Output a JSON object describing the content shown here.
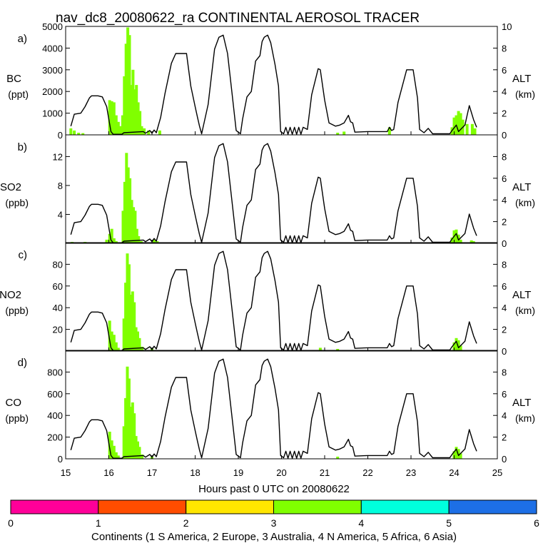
{
  "chart_data": {
    "type": "bar",
    "title": "nav_dc8_20080622_ra CONTINENTAL AEROSOL TRACER",
    "xlabel": "Hours past 0 UTC on 20080622",
    "xlim": [
      15,
      25
    ],
    "x_ticks": [
      "15",
      "16",
      "17",
      "18",
      "19",
      "20",
      "21",
      "22",
      "23",
      "24",
      "25"
    ],
    "right_axis": {
      "label": "ALT",
      "units": "(km)",
      "ylim": [
        0,
        10
      ],
      "line_color": "#000000",
      "altitude_km": [
        [
          15.12,
          0.8
        ],
        [
          15.2,
          1.9
        ],
        [
          15.35,
          2
        ],
        [
          15.45,
          2.6
        ],
        [
          15.55,
          3.4
        ],
        [
          15.6,
          3.6
        ],
        [
          15.75,
          3.6
        ],
        [
          15.85,
          3.5
        ],
        [
          15.95,
          2.6
        ],
        [
          16.05,
          0.3
        ],
        [
          16.1,
          0.05
        ],
        [
          16.3,
          0.05
        ],
        [
          16.35,
          0.2
        ],
        [
          16.8,
          0.3
        ],
        [
          16.85,
          0.15
        ],
        [
          16.95,
          0.4
        ],
        [
          17.0,
          0.15
        ],
        [
          17.05,
          0.45
        ],
        [
          17.1,
          0.2
        ],
        [
          17.2,
          1.6
        ],
        [
          17.3,
          3.8
        ],
        [
          17.45,
          6.6
        ],
        [
          17.55,
          7.5
        ],
        [
          17.8,
          7.5
        ],
        [
          17.9,
          4.5
        ],
        [
          18.0,
          2.6
        ],
        [
          18.05,
          1.7
        ],
        [
          18.1,
          0.8
        ],
        [
          18.15,
          0.1
        ],
        [
          18.3,
          2.8
        ],
        [
          18.45,
          7.9
        ],
        [
          18.55,
          9.0
        ],
        [
          18.65,
          9.2
        ],
        [
          18.75,
          7.5
        ],
        [
          18.85,
          4.0
        ],
        [
          18.95,
          0.4
        ],
        [
          19.05,
          0.1
        ],
        [
          19.1,
          1.5
        ],
        [
          19.2,
          3.5
        ],
        [
          19.3,
          4.0
        ],
        [
          19.4,
          6.8
        ],
        [
          19.5,
          7.3
        ],
        [
          19.55,
          8.6
        ],
        [
          19.6,
          9.0
        ],
        [
          19.68,
          9.2
        ],
        [
          19.75,
          8.5
        ],
        [
          19.85,
          6.5
        ],
        [
          19.93,
          4.5
        ],
        [
          19.98,
          0.3
        ],
        [
          20.05,
          0.1
        ],
        [
          20.1,
          0.7
        ],
        [
          20.15,
          0.05
        ],
        [
          20.2,
          0.7
        ],
        [
          20.25,
          0.05
        ],
        [
          20.3,
          0.7
        ],
        [
          20.35,
          0.05
        ],
        [
          20.4,
          0.7
        ],
        [
          20.45,
          0.05
        ],
        [
          20.5,
          0.7
        ],
        [
          20.6,
          0.5
        ],
        [
          20.7,
          3.7
        ],
        [
          20.85,
          6.1
        ],
        [
          20.9,
          6.0
        ],
        [
          21.0,
          3.2
        ],
        [
          21.1,
          1.1
        ],
        [
          21.25,
          0.8
        ],
        [
          21.35,
          0.9
        ],
        [
          21.45,
          1.1
        ],
        [
          21.55,
          1.8
        ],
        [
          21.6,
          1.2
        ],
        [
          21.65,
          1.1
        ],
        [
          21.7,
          0.25
        ],
        [
          22.0,
          0.3
        ],
        [
          22.3,
          0.3
        ],
        [
          22.45,
          0.3
        ],
        [
          22.5,
          0.7
        ],
        [
          22.55,
          0.4
        ],
        [
          22.6,
          0.5
        ],
        [
          22.7,
          3.0
        ],
        [
          22.9,
          6.0
        ],
        [
          23.05,
          6.0
        ],
        [
          23.15,
          3.4
        ],
        [
          23.2,
          0.5
        ],
        [
          23.3,
          0.2
        ],
        [
          23.4,
          0.6
        ],
        [
          23.5,
          0.1
        ],
        [
          23.9,
          0.1
        ],
        [
          23.95,
          0.4
        ],
        [
          24.05,
          0.9
        ],
        [
          24.1,
          0.3
        ],
        [
          24.25,
          0.9
        ],
        [
          24.35,
          2.7
        ],
        [
          24.45,
          1.4
        ],
        [
          24.52,
          0.7
        ]
      ]
    },
    "panels": [
      {
        "letter": "a)",
        "species": "BC",
        "units": "(ppt)",
        "ylim": [
          0,
          5000
        ],
        "y_ticks": [
          "0",
          "1000",
          "2000",
          "3000",
          "4000",
          "5000"
        ],
        "alt_ticks": [
          "0",
          "2",
          "4",
          "6",
          "8",
          "10"
        ],
        "series": [
          {
            "name": "N America",
            "color": "#80ff00",
            "bars": [
              [
                15.12,
                300
              ],
              [
                15.2,
                200
              ],
              [
                15.3,
                100
              ],
              [
                15.4,
                80
              ],
              [
                16.02,
                1600
              ],
              [
                16.07,
                1550
              ],
              [
                16.12,
                1500
              ],
              [
                16.17,
                900
              ],
              [
                16.22,
                600
              ],
              [
                16.27,
                400
              ],
              [
                16.32,
                900
              ],
              [
                16.36,
                2700
              ],
              [
                16.4,
                4200
              ],
              [
                16.44,
                4950
              ],
              [
                16.48,
                4600
              ],
              [
                16.52,
                2300
              ],
              [
                16.56,
                3000
              ],
              [
                16.6,
                2100
              ],
              [
                16.64,
                2300
              ],
              [
                16.68,
                1500
              ],
              [
                16.72,
                1100
              ],
              [
                16.76,
                400
              ],
              [
                16.82,
                300
              ],
              [
                16.92,
                200
              ],
              [
                17.18,
                200
              ],
              [
                21.3,
                100
              ],
              [
                21.45,
                150
              ],
              [
                22.5,
                350
              ],
              [
                23.95,
                350
              ],
              [
                24.0,
                800
              ],
              [
                24.05,
                900
              ],
              [
                24.1,
                1100
              ],
              [
                24.15,
                1000
              ],
              [
                24.2,
                700
              ],
              [
                24.3,
                500
              ],
              [
                24.42,
                500
              ],
              [
                24.48,
                300
              ]
            ]
          }
        ]
      },
      {
        "letter": "b)",
        "species": "SO2",
        "units": "(ppb)",
        "ylim": [
          0,
          15
        ],
        "y_ticks": [
          "",
          "4",
          "8",
          "12"
        ],
        "alt_ticks": [
          "0",
          "2",
          "4",
          "6",
          "8"
        ],
        "series": [
          {
            "name": "N America",
            "color": "#80ff00",
            "bars": [
              [
                15.15,
                0.2
              ],
              [
                15.3,
                0.15
              ],
              [
                15.45,
                0.2
              ],
              [
                15.6,
                0.15
              ],
              [
                15.75,
                0.15
              ],
              [
                15.95,
                0.5
              ],
              [
                16.02,
                1.3
              ],
              [
                16.07,
                2.0
              ],
              [
                16.12,
                0.7
              ],
              [
                16.17,
                0.3
              ],
              [
                16.33,
                4.5
              ],
              [
                16.37,
                8.5
              ],
              [
                16.41,
                12.5
              ],
              [
                16.45,
                10.5
              ],
              [
                16.49,
                9.0
              ],
              [
                16.53,
                6.0
              ],
              [
                16.57,
                5.0
              ],
              [
                16.61,
                4.5
              ],
              [
                16.65,
                2.0
              ],
              [
                16.69,
                1.0
              ],
              [
                16.75,
                0.3
              ],
              [
                17.05,
                0.5
              ],
              [
                17.12,
                0.3
              ],
              [
                20.75,
                0.15
              ],
              [
                21.35,
                0.15
              ],
              [
                23.95,
                0.8
              ],
              [
                24.0,
                1.8
              ],
              [
                24.05,
                1.9
              ],
              [
                24.1,
                1.2
              ],
              [
                24.15,
                0.5
              ],
              [
                24.4,
                0.4
              ],
              [
                24.45,
                0.3
              ]
            ]
          },
          {
            "name": "Asia",
            "color": "#1d6fe6",
            "bars": [
              [
                19.15,
                0.15
              ],
              [
                19.55,
                0.1
              ],
              [
                19.65,
                0.1
              ],
              [
                20.2,
                0.1
              ]
            ]
          }
        ]
      },
      {
        "letter": "c)",
        "species": "NO2",
        "units": "(ppb)",
        "ylim": [
          0,
          100
        ],
        "y_ticks": [
          "",
          "20",
          "40",
          "60",
          "80"
        ],
        "alt_ticks": [
          "0",
          "2",
          "4",
          "6",
          "8"
        ],
        "series": [
          {
            "name": "N America",
            "color": "#80ff00",
            "bars": [
              [
                16.02,
                28
              ],
              [
                16.07,
                18
              ],
              [
                16.12,
                15
              ],
              [
                16.17,
                8
              ],
              [
                16.22,
                3
              ],
              [
                16.35,
                30
              ],
              [
                16.39,
                63
              ],
              [
                16.43,
                90
              ],
              [
                16.47,
                80
              ],
              [
                16.51,
                52
              ],
              [
                16.55,
                55
              ],
              [
                16.59,
                45
              ],
              [
                16.63,
                22
              ],
              [
                16.67,
                18
              ],
              [
                16.71,
                12
              ],
              [
                16.77,
                4
              ],
              [
                17.0,
                3
              ],
              [
                20.9,
                3
              ],
              [
                21.3,
                2
              ],
              [
                24.0,
                8
              ],
              [
                24.05,
                12
              ],
              [
                24.1,
                10
              ],
              [
                24.15,
                5
              ]
            ]
          }
        ]
      },
      {
        "letter": "d)",
        "species": "CO",
        "units": "(ppb)",
        "ylim": [
          0,
          1000
        ],
        "y_ticks": [
          "0",
          "200",
          "400",
          "600",
          "800"
        ],
        "alt_ticks": [
          "0",
          "2",
          "4",
          "6",
          "8"
        ],
        "series": [
          {
            "name": "N America",
            "color": "#80ff00",
            "bars": [
              [
                16.02,
                250
              ],
              [
                16.07,
                170
              ],
              [
                16.12,
                120
              ],
              [
                16.17,
                60
              ],
              [
                16.22,
                30
              ],
              [
                16.35,
                300
              ],
              [
                16.39,
                560
              ],
              [
                16.43,
                850
              ],
              [
                16.47,
                740
              ],
              [
                16.51,
                480
              ],
              [
                16.55,
                520
              ],
              [
                16.59,
                420
              ],
              [
                16.63,
                210
              ],
              [
                16.67,
                160
              ],
              [
                16.71,
                110
              ],
              [
                16.77,
                40
              ],
              [
                17.0,
                20
              ],
              [
                21.3,
                20
              ],
              [
                24.0,
                70
              ],
              [
                24.05,
                110
              ],
              [
                24.1,
                90
              ],
              [
                24.15,
                50
              ]
            ]
          }
        ]
      }
    ],
    "colorbar": {
      "label": "Continents (1 S America, 2 Europe, 3 Australia, 4 N America, 5 Africa, 6 Asia)",
      "range": [
        0,
        6
      ],
      "ticks": [
        "0",
        "1",
        "2",
        "3",
        "4",
        "5",
        "6"
      ],
      "colors": [
        "#ff0099",
        "#ff4d00",
        "#ffe600",
        "#80ff00",
        "#00ffdd",
        "#1d6fe6"
      ]
    }
  }
}
